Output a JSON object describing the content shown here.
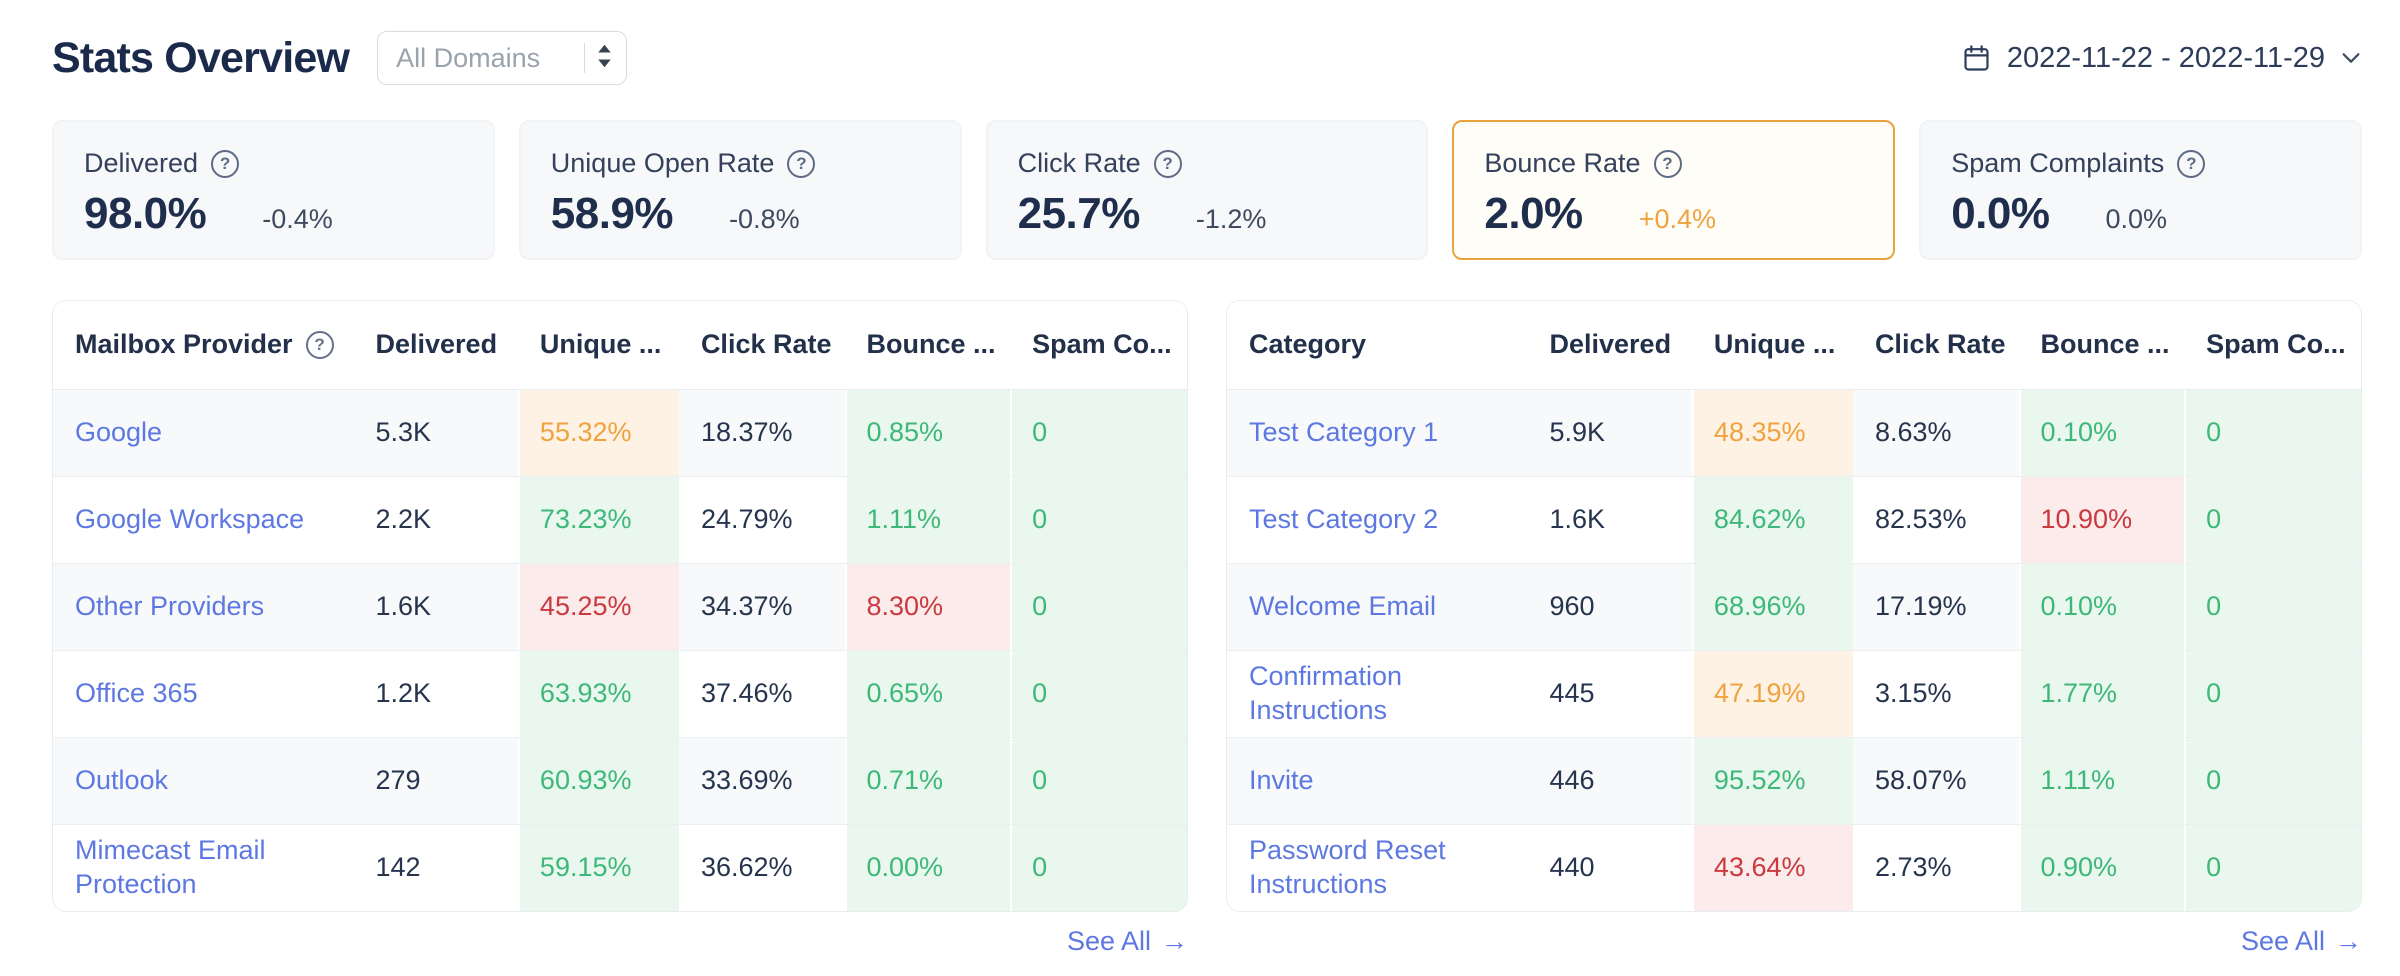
{
  "header": {
    "title": "Stats Overview",
    "domain_select": {
      "value": "All Domains"
    },
    "date_range": {
      "label": "2022-11-22 - 2022-11-29"
    }
  },
  "colors": {
    "link_blue": "#5d78e3",
    "positive_green": "#3eb878",
    "positive_green_bg": "#eaf7ef",
    "warning_orange": "#efa23e",
    "warning_orange_bg": "#fdf2e3",
    "negative_red": "#c9393f",
    "negative_red_bg": "#fbeceb",
    "navy_text": "#1f2e4d",
    "highlight_card_border": "#e9a33c",
    "card_bg": "#f7f8f9",
    "row_stripe_bg": "#f7f9fa"
  },
  "icons": {
    "calendar": "calendar-icon",
    "chevron_down": "chevron-down-icon",
    "select_sorter": "select-sorter-icon",
    "help_glyph": "?",
    "arrow_right_glyph": "→"
  },
  "cards": [
    {
      "label": "Delivered",
      "value": "98.0%",
      "delta": "-0.4%",
      "delta_tone": "neutral",
      "highlighted": false
    },
    {
      "label": "Unique Open Rate",
      "value": "58.9%",
      "delta": "-0.8%",
      "delta_tone": "neutral",
      "highlighted": false
    },
    {
      "label": "Click Rate",
      "value": "25.7%",
      "delta": "-1.2%",
      "delta_tone": "neutral",
      "highlighted": false
    },
    {
      "label": "Bounce Rate",
      "value": "2.0%",
      "delta": "+0.4%",
      "delta_tone": "orange",
      "highlighted": true
    },
    {
      "label": "Spam Complaints",
      "value": "0.0%",
      "delta": "0.0%",
      "delta_tone": "neutral",
      "highlighted": false
    }
  ],
  "tables": [
    {
      "id": "mailbox-provider",
      "columns": [
        {
          "label": "Mailbox Provider",
          "help": true
        },
        {
          "label": "Delivered"
        },
        {
          "label": "Unique ..."
        },
        {
          "label": "Click Rate"
        },
        {
          "label": "Bounce ..."
        },
        {
          "label": "Spam Co..."
        }
      ],
      "rows": [
        {
          "label": "Google",
          "cells": [
            {
              "text": "5.3K"
            },
            {
              "text": "55.32%",
              "tone": "orange"
            },
            {
              "text": "18.37%"
            },
            {
              "text": "0.85%",
              "tone": "green"
            },
            {
              "text": "0",
              "tone": "green"
            }
          ]
        },
        {
          "label": "Google Workspace",
          "cells": [
            {
              "text": "2.2K"
            },
            {
              "text": "73.23%",
              "tone": "green"
            },
            {
              "text": "24.79%"
            },
            {
              "text": "1.11%",
              "tone": "green"
            },
            {
              "text": "0",
              "tone": "green"
            }
          ]
        },
        {
          "label": "Other Providers",
          "cells": [
            {
              "text": "1.6K"
            },
            {
              "text": "45.25%",
              "tone": "red"
            },
            {
              "text": "34.37%"
            },
            {
              "text": "8.30%",
              "tone": "red"
            },
            {
              "text": "0",
              "tone": "green"
            }
          ]
        },
        {
          "label": "Office 365",
          "cells": [
            {
              "text": "1.2K"
            },
            {
              "text": "63.93%",
              "tone": "green"
            },
            {
              "text": "37.46%"
            },
            {
              "text": "0.65%",
              "tone": "green"
            },
            {
              "text": "0",
              "tone": "green"
            }
          ]
        },
        {
          "label": "Outlook",
          "cells": [
            {
              "text": "279"
            },
            {
              "text": "60.93%",
              "tone": "green"
            },
            {
              "text": "33.69%"
            },
            {
              "text": "0.71%",
              "tone": "green"
            },
            {
              "text": "0",
              "tone": "green"
            }
          ]
        },
        {
          "label": "Mimecast Email Protection",
          "cells": [
            {
              "text": "142"
            },
            {
              "text": "59.15%",
              "tone": "green"
            },
            {
              "text": "36.62%"
            },
            {
              "text": "0.00%",
              "tone": "green"
            },
            {
              "text": "0",
              "tone": "green"
            }
          ]
        }
      ],
      "see_all_label": "See All"
    },
    {
      "id": "category",
      "columns": [
        {
          "label": "Category"
        },
        {
          "label": "Delivered"
        },
        {
          "label": "Unique ..."
        },
        {
          "label": "Click Rate"
        },
        {
          "label": "Bounce ..."
        },
        {
          "label": "Spam Co..."
        }
      ],
      "rows": [
        {
          "label": "Test Category 1",
          "cells": [
            {
              "text": "5.9K"
            },
            {
              "text": "48.35%",
              "tone": "orange"
            },
            {
              "text": "8.63%"
            },
            {
              "text": "0.10%",
              "tone": "green"
            },
            {
              "text": "0",
              "tone": "green"
            }
          ]
        },
        {
          "label": "Test Category 2",
          "cells": [
            {
              "text": "1.6K"
            },
            {
              "text": "84.62%",
              "tone": "green"
            },
            {
              "text": "82.53%"
            },
            {
              "text": "10.90%",
              "tone": "red"
            },
            {
              "text": "0",
              "tone": "green"
            }
          ]
        },
        {
          "label": "Welcome Email",
          "cells": [
            {
              "text": "960"
            },
            {
              "text": "68.96%",
              "tone": "green"
            },
            {
              "text": "17.19%"
            },
            {
              "text": "0.10%",
              "tone": "green"
            },
            {
              "text": "0",
              "tone": "green"
            }
          ]
        },
        {
          "label": "Confirmation Instructions",
          "cells": [
            {
              "text": "445"
            },
            {
              "text": "47.19%",
              "tone": "orange"
            },
            {
              "text": "3.15%"
            },
            {
              "text": "1.77%",
              "tone": "green"
            },
            {
              "text": "0",
              "tone": "green"
            }
          ]
        },
        {
          "label": "Invite",
          "cells": [
            {
              "text": "446"
            },
            {
              "text": "95.52%",
              "tone": "green"
            },
            {
              "text": "58.07%"
            },
            {
              "text": "1.11%",
              "tone": "green"
            },
            {
              "text": "0",
              "tone": "green"
            }
          ]
        },
        {
          "label": "Password Reset Instructions",
          "cells": [
            {
              "text": "440"
            },
            {
              "text": "43.64%",
              "tone": "red"
            },
            {
              "text": "2.73%"
            },
            {
              "text": "0.90%",
              "tone": "green"
            },
            {
              "text": "0",
              "tone": "green"
            }
          ]
        }
      ],
      "see_all_label": "See All"
    }
  ]
}
